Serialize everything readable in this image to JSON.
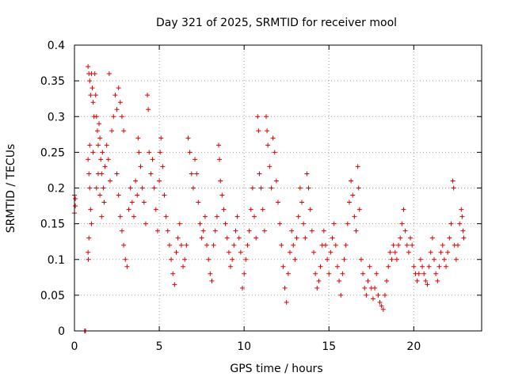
{
  "chart_data": {
    "type": "scatter",
    "title": "Day 321 of 2025, SRMTID for receiver mool",
    "xlabel": "GPS time / hours",
    "ylabel": "SRMTID / TECUs",
    "xlim": [
      0,
      24
    ],
    "ylim": [
      0,
      0.4
    ],
    "xticks": [
      0,
      5,
      10,
      15,
      20
    ],
    "xtick_labels": [
      "0",
      "5",
      "10",
      "15",
      "20"
    ],
    "yticks": [
      0,
      0.05,
      0.1,
      0.15,
      0.2,
      0.25,
      0.3,
      0.35,
      0.4
    ],
    "ytick_labels": [
      "0",
      "0.05",
      "0.1",
      "0.15",
      "0.2",
      "0.25",
      "0.3",
      "0.35",
      "0.4"
    ],
    "grid": true,
    "marker": "+",
    "marker_color": "#e00000",
    "series": [
      {
        "name": "SRMTID",
        "points": [
          [
            0.0,
            0.19
          ],
          [
            0.0,
            0.165
          ],
          [
            0.05,
            0.175
          ],
          [
            0.05,
            0.185
          ],
          [
            0.6,
            0.0
          ],
          [
            0.65,
            0.0
          ],
          [
            0.8,
            0.37
          ],
          [
            0.85,
            0.36
          ],
          [
            0.9,
            0.35
          ],
          [
            0.95,
            0.33
          ],
          [
            1.0,
            0.36
          ],
          [
            1.05,
            0.34
          ],
          [
            1.1,
            0.32
          ],
          [
            1.15,
            0.3
          ],
          [
            1.2,
            0.36
          ],
          [
            1.25,
            0.33
          ],
          [
            0.8,
            0.24
          ],
          [
            0.85,
            0.22
          ],
          [
            0.9,
            0.2
          ],
          [
            0.95,
            0.17
          ],
          [
            1.0,
            0.15
          ],
          [
            0.85,
            0.13
          ],
          [
            0.8,
            0.11
          ],
          [
            0.82,
            0.1
          ],
          [
            0.9,
            0.26
          ],
          [
            1.1,
            0.25
          ],
          [
            1.3,
            0.3
          ],
          [
            1.35,
            0.28
          ],
          [
            1.4,
            0.26
          ],
          [
            1.45,
            0.29
          ],
          [
            1.5,
            0.27
          ],
          [
            1.55,
            0.24
          ],
          [
            1.6,
            0.22
          ],
          [
            1.65,
            0.25
          ],
          [
            1.7,
            0.2
          ],
          [
            1.75,
            0.18
          ],
          [
            1.3,
            0.2
          ],
          [
            1.4,
            0.22
          ],
          [
            1.5,
            0.19
          ],
          [
            1.6,
            0.16
          ],
          [
            1.8,
            0.23
          ],
          [
            1.9,
            0.26
          ],
          [
            2.0,
            0.24
          ],
          [
            2.1,
            0.21
          ],
          [
            2.2,
            0.28
          ],
          [
            2.3,
            0.3
          ],
          [
            2.05,
            0.36
          ],
          [
            2.4,
            0.33
          ],
          [
            2.5,
            0.31
          ],
          [
            2.6,
            0.34
          ],
          [
            2.7,
            0.32
          ],
          [
            2.8,
            0.3
          ],
          [
            2.9,
            0.28
          ],
          [
            2.5,
            0.22
          ],
          [
            2.6,
            0.19
          ],
          [
            2.7,
            0.16
          ],
          [
            2.8,
            0.14
          ],
          [
            2.9,
            0.12
          ],
          [
            3.0,
            0.1
          ],
          [
            3.1,
            0.09
          ],
          [
            3.2,
            0.17
          ],
          [
            3.3,
            0.2
          ],
          [
            3.4,
            0.18
          ],
          [
            3.5,
            0.16
          ],
          [
            3.6,
            0.21
          ],
          [
            3.7,
            0.19
          ],
          [
            3.75,
            0.27
          ],
          [
            3.8,
            0.25
          ],
          [
            3.9,
            0.23
          ],
          [
            4.0,
            0.2
          ],
          [
            4.1,
            0.18
          ],
          [
            4.2,
            0.15
          ],
          [
            4.3,
            0.33
          ],
          [
            4.35,
            0.31
          ],
          [
            4.4,
            0.25
          ],
          [
            4.5,
            0.22
          ],
          [
            4.6,
            0.24
          ],
          [
            4.7,
            0.2
          ],
          [
            4.8,
            0.17
          ],
          [
            4.9,
            0.14
          ],
          [
            5.0,
            0.21
          ],
          [
            5.05,
            0.25
          ],
          [
            5.1,
            0.27
          ],
          [
            5.2,
            0.23
          ],
          [
            5.3,
            0.19
          ],
          [
            5.4,
            0.16
          ],
          [
            5.5,
            0.14
          ],
          [
            5.6,
            0.12
          ],
          [
            5.7,
            0.1
          ],
          [
            5.8,
            0.08
          ],
          [
            5.9,
            0.065
          ],
          [
            6.0,
            0.11
          ],
          [
            6.1,
            0.13
          ],
          [
            6.2,
            0.15
          ],
          [
            6.3,
            0.12
          ],
          [
            6.4,
            0.09
          ],
          [
            6.5,
            0.1
          ],
          [
            6.6,
            0.12
          ],
          [
            6.7,
            0.27
          ],
          [
            6.8,
            0.25
          ],
          [
            6.9,
            0.22
          ],
          [
            7.0,
            0.2
          ],
          [
            7.1,
            0.24
          ],
          [
            7.2,
            0.22
          ],
          [
            7.3,
            0.18
          ],
          [
            7.4,
            0.15
          ],
          [
            7.5,
            0.13
          ],
          [
            7.6,
            0.14
          ],
          [
            7.7,
            0.16
          ],
          [
            7.8,
            0.12
          ],
          [
            7.9,
            0.1
          ],
          [
            8.0,
            0.08
          ],
          [
            8.1,
            0.07
          ],
          [
            8.2,
            0.12
          ],
          [
            8.3,
            0.14
          ],
          [
            8.4,
            0.16
          ],
          [
            8.5,
            0.26
          ],
          [
            8.55,
            0.24
          ],
          [
            8.6,
            0.21
          ],
          [
            8.7,
            0.19
          ],
          [
            8.8,
            0.17
          ],
          [
            8.9,
            0.15
          ],
          [
            9.0,
            0.13
          ],
          [
            9.1,
            0.11
          ],
          [
            9.2,
            0.09
          ],
          [
            9.3,
            0.1
          ],
          [
            9.4,
            0.12
          ],
          [
            9.5,
            0.14
          ],
          [
            9.6,
            0.16
          ],
          [
            9.7,
            0.13
          ],
          [
            9.8,
            0.11
          ],
          [
            9.9,
            0.06
          ],
          [
            10.0,
            0.08
          ],
          [
            10.1,
            0.1
          ],
          [
            10.2,
            0.12
          ],
          [
            10.3,
            0.14
          ],
          [
            10.4,
            0.17
          ],
          [
            10.5,
            0.2
          ],
          [
            10.6,
            0.16
          ],
          [
            10.7,
            0.13
          ],
          [
            10.8,
            0.3
          ],
          [
            10.85,
            0.28
          ],
          [
            10.9,
            0.22
          ],
          [
            11.0,
            0.2
          ],
          [
            11.1,
            0.17
          ],
          [
            11.2,
            0.14
          ],
          [
            11.3,
            0.3
          ],
          [
            11.35,
            0.28
          ],
          [
            11.4,
            0.26
          ],
          [
            11.5,
            0.23
          ],
          [
            11.6,
            0.2
          ],
          [
            11.7,
            0.27
          ],
          [
            11.8,
            0.25
          ],
          [
            11.9,
            0.21
          ],
          [
            12.0,
            0.18
          ],
          [
            12.1,
            0.15
          ],
          [
            12.2,
            0.12
          ],
          [
            12.3,
            0.09
          ],
          [
            12.4,
            0.06
          ],
          [
            12.5,
            0.04
          ],
          [
            12.6,
            0.08
          ],
          [
            12.7,
            0.11
          ],
          [
            12.8,
            0.14
          ],
          [
            12.9,
            0.12
          ],
          [
            13.0,
            0.1
          ],
          [
            13.1,
            0.13
          ],
          [
            13.2,
            0.16
          ],
          [
            13.3,
            0.2
          ],
          [
            13.4,
            0.18
          ],
          [
            13.5,
            0.15
          ],
          [
            13.6,
            0.13
          ],
          [
            13.7,
            0.22
          ],
          [
            13.8,
            0.2
          ],
          [
            13.9,
            0.17
          ],
          [
            14.0,
            0.14
          ],
          [
            14.1,
            0.11
          ],
          [
            14.2,
            0.08
          ],
          [
            14.3,
            0.06
          ],
          [
            14.4,
            0.07
          ],
          [
            14.5,
            0.09
          ],
          [
            14.6,
            0.12
          ],
          [
            14.7,
            0.14
          ],
          [
            14.8,
            0.12
          ],
          [
            14.9,
            0.1
          ],
          [
            15.0,
            0.08
          ],
          [
            15.1,
            0.11
          ],
          [
            15.2,
            0.13
          ],
          [
            15.3,
            0.15
          ],
          [
            15.4,
            0.12
          ],
          [
            15.5,
            0.09
          ],
          [
            15.6,
            0.07
          ],
          [
            15.7,
            0.05
          ],
          [
            15.8,
            0.08
          ],
          [
            15.9,
            0.1
          ],
          [
            16.0,
            0.12
          ],
          [
            16.1,
            0.15
          ],
          [
            16.2,
            0.18
          ],
          [
            16.3,
            0.21
          ],
          [
            16.4,
            0.19
          ],
          [
            16.5,
            0.16
          ],
          [
            16.6,
            0.14
          ],
          [
            16.7,
            0.23
          ],
          [
            16.75,
            0.2
          ],
          [
            16.8,
            0.17
          ],
          [
            16.9,
            0.1
          ],
          [
            17.0,
            0.08
          ],
          [
            17.1,
            0.06
          ],
          [
            17.2,
            0.05
          ],
          [
            17.3,
            0.07
          ],
          [
            17.4,
            0.09
          ],
          [
            17.5,
            0.06
          ],
          [
            17.6,
            0.045
          ],
          [
            17.7,
            0.06
          ],
          [
            17.8,
            0.08
          ],
          [
            17.9,
            0.05
          ],
          [
            18.0,
            0.04
          ],
          [
            18.1,
            0.035
          ],
          [
            18.2,
            0.03
          ],
          [
            18.3,
            0.05
          ],
          [
            18.4,
            0.07
          ],
          [
            18.5,
            0.09
          ],
          [
            18.6,
            0.11
          ],
          [
            18.7,
            0.1
          ],
          [
            18.8,
            0.12
          ],
          [
            18.9,
            0.11
          ],
          [
            19.0,
            0.1
          ],
          [
            19.1,
            0.12
          ],
          [
            19.2,
            0.13
          ],
          [
            19.3,
            0.15
          ],
          [
            19.4,
            0.17
          ],
          [
            19.5,
            0.14
          ],
          [
            19.6,
            0.12
          ],
          [
            19.7,
            0.11
          ],
          [
            19.8,
            0.13
          ],
          [
            19.9,
            0.12
          ],
          [
            20.0,
            0.09
          ],
          [
            20.1,
            0.08
          ],
          [
            20.2,
            0.07
          ],
          [
            20.3,
            0.08
          ],
          [
            20.4,
            0.1
          ],
          [
            20.5,
            0.09
          ],
          [
            20.6,
            0.08
          ],
          [
            20.7,
            0.07
          ],
          [
            20.8,
            0.065
          ],
          [
            20.9,
            0.09
          ],
          [
            21.0,
            0.11
          ],
          [
            21.1,
            0.13
          ],
          [
            21.2,
            0.1
          ],
          [
            21.3,
            0.08
          ],
          [
            21.4,
            0.07
          ],
          [
            21.5,
            0.09
          ],
          [
            21.6,
            0.11
          ],
          [
            21.7,
            0.12
          ],
          [
            21.8,
            0.1
          ],
          [
            21.9,
            0.09
          ],
          [
            22.0,
            0.11
          ],
          [
            22.1,
            0.13
          ],
          [
            22.2,
            0.15
          ],
          [
            22.3,
            0.21
          ],
          [
            22.35,
            0.2
          ],
          [
            22.4,
            0.12
          ],
          [
            22.5,
            0.1
          ],
          [
            22.6,
            0.12
          ],
          [
            22.7,
            0.15
          ],
          [
            22.8,
            0.17
          ],
          [
            22.85,
            0.16
          ],
          [
            22.9,
            0.14
          ],
          [
            22.95,
            0.13
          ]
        ]
      }
    ]
  }
}
